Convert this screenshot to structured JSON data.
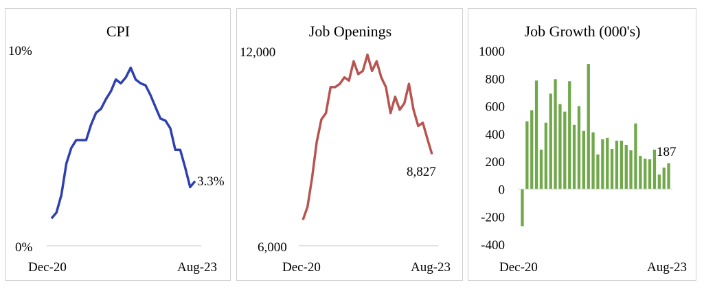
{
  "chart_data": [
    {
      "type": "line",
      "title": "CPI",
      "ylim": [
        0,
        10
      ],
      "y_ticks": [
        "10%",
        "0%"
      ],
      "x_ticks": [
        "Dec-20",
        "Aug-23"
      ],
      "end_label": "3.3%",
      "color": "#2e3fb3",
      "values": [
        1.4,
        1.7,
        2.6,
        4.2,
        5.0,
        5.4,
        5.4,
        5.4,
        6.2,
        6.8,
        7.0,
        7.5,
        7.9,
        8.5,
        8.3,
        8.6,
        9.1,
        8.5,
        8.3,
        8.2,
        7.7,
        7.1,
        6.5,
        6.4,
        6.0,
        4.9,
        4.9,
        4.0,
        3.0,
        3.3
      ]
    },
    {
      "type": "line",
      "title": "Job Openings",
      "ylim": [
        6000,
        12000
      ],
      "y_ticks": [
        "12,000",
        "6,000"
      ],
      "x_ticks": [
        "Dec-20",
        "Aug-23"
      ],
      "end_label": "8,827",
      "color": "#b85450",
      "values": [
        6800,
        7200,
        8100,
        9200,
        9900,
        10100,
        10900,
        10900,
        11000,
        11200,
        11100,
        11700,
        11300,
        11400,
        11900,
        11400,
        11700,
        11200,
        10900,
        10100,
        10600,
        10200,
        10400,
        11000,
        10200,
        9700,
        9800,
        9300,
        8827
      ]
    },
    {
      "type": "bar",
      "title": "Job Growth (000's)",
      "ylim": [
        -400,
        1000
      ],
      "y_ticks": [
        "1000",
        "800",
        "600",
        "400",
        "200",
        "0",
        "-200",
        "-400"
      ],
      "x_ticks": [
        "Dec-20",
        "Aug-23"
      ],
      "end_label": "187",
      "color": "#70a84a",
      "neg_color": "#70a84a",
      "values": [
        -268,
        490,
        570,
        785,
        285,
        480,
        690,
        795,
        615,
        560,
        780,
        465,
        600,
        420,
        905,
        410,
        250,
        360,
        370,
        290,
        350,
        350,
        320,
        280,
        475,
        240,
        220,
        215,
        285,
        105,
        155,
        187
      ]
    }
  ]
}
